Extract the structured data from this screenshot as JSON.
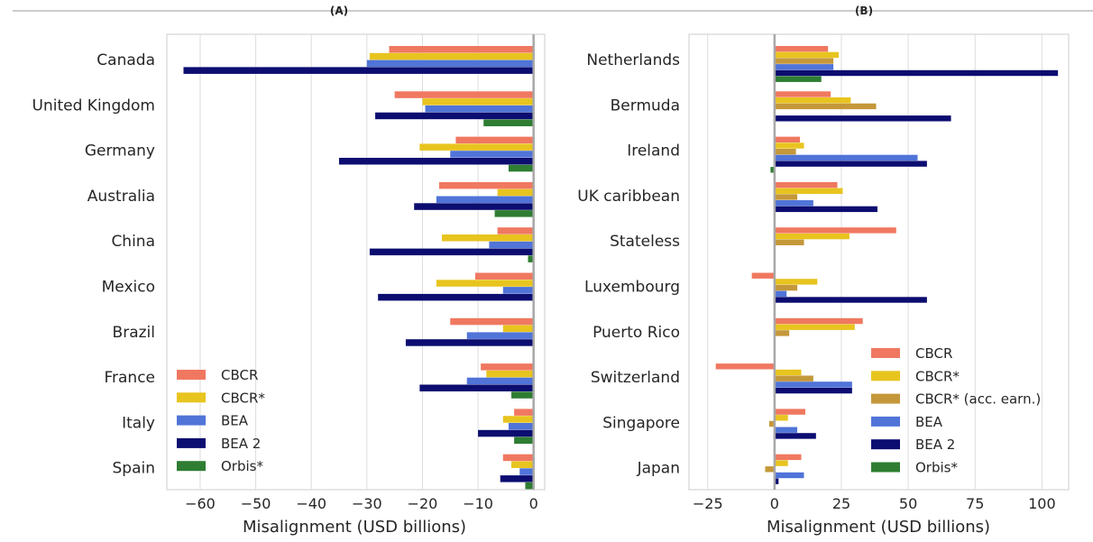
{
  "chart_data": [
    {
      "type": "bar",
      "orientation": "horizontal",
      "title": "(A)",
      "xlabel": "Misalignment (USD billions)",
      "xlim": [
        -66,
        2
      ],
      "xticks": [
        -60,
        -50,
        -40,
        -30,
        -20,
        -10,
        0
      ],
      "xtick_labels": [
        "−60",
        "−50",
        "−40",
        "−30",
        "−20",
        "−10",
        "0"
      ],
      "grid": true,
      "legend_position": "bottom-left",
      "categories": [
        "Canada",
        "United Kingdom",
        "Germany",
        "Australia",
        "China",
        "Mexico",
        "Brazil",
        "France",
        "Italy",
        "Spain"
      ],
      "series": [
        {
          "name": "CBCR",
          "color": "#f07860",
          "values": [
            -26,
            -25,
            -14,
            -17,
            -6.5,
            -10.5,
            -15,
            -9.5,
            -3.5,
            -5.5
          ]
        },
        {
          "name": "CBCR*",
          "color": "#e8c41f",
          "values": [
            -29.5,
            -20,
            -20.5,
            -6.5,
            -16.5,
            -17.5,
            -5.5,
            -8.5,
            -5.5,
            -4
          ]
        },
        {
          "name": "BEA",
          "color": "#5074d8",
          "values": [
            -30,
            -19.5,
            -15,
            -17.5,
            -8,
            -5.5,
            -12,
            -12,
            -4.5,
            -2.5
          ]
        },
        {
          "name": "BEA 2",
          "color": "#0c0d70",
          "values": [
            -63,
            -28.5,
            -35,
            -21.5,
            -29.5,
            -28,
            -23,
            -20.5,
            -10,
            -6
          ]
        },
        {
          "name": "Orbis*",
          "color": "#2e7d32",
          "values": [
            0,
            -9,
            -4.5,
            -7,
            -1,
            0,
            0,
            -4,
            -3.5,
            -1.5
          ]
        }
      ]
    },
    {
      "type": "bar",
      "orientation": "horizontal",
      "title": "(B)",
      "xlabel": "Misalignment (USD billions)",
      "xlim": [
        -32,
        110
      ],
      "xticks": [
        -25,
        0,
        25,
        50,
        75,
        100
      ],
      "xtick_labels": [
        "−25",
        "0",
        "25",
        "50",
        "75",
        "100"
      ],
      "grid": true,
      "legend_position": "bottom-right",
      "categories": [
        "Netherlands",
        "Bermuda",
        "Ireland",
        "UK caribbean",
        "Stateless",
        "Luxembourg",
        "Puerto Rico",
        "Switzerland",
        "Singapore",
        "Japan"
      ],
      "series": [
        {
          "name": "CBCR",
          "color": "#f07860",
          "values": [
            20,
            21,
            9.5,
            23.5,
            45.5,
            -8.5,
            33,
            -22,
            11.5,
            10
          ]
        },
        {
          "name": "CBCR*",
          "color": "#e8c41f",
          "values": [
            24,
            28.5,
            11,
            25.5,
            28,
            16,
            30,
            10,
            5,
            5
          ]
        },
        {
          "name": "CBCR* (acc. earn.)",
          "color": "#c4983a",
          "values": [
            22,
            38,
            8,
            8.5,
            11,
            8.5,
            5.5,
            14.5,
            -2,
            -3.5
          ]
        },
        {
          "name": "BEA",
          "color": "#5074d8",
          "values": [
            22,
            0,
            53.5,
            14.5,
            0,
            4.5,
            0,
            29,
            8.5,
            11
          ]
        },
        {
          "name": "BEA 2",
          "color": "#0c0d70",
          "values": [
            106,
            66,
            57,
            38.5,
            0,
            57,
            0,
            29,
            15.5,
            1.5
          ]
        },
        {
          "name": "Orbis*",
          "color": "#2e7d32",
          "values": [
            17.5,
            0,
            -1.5,
            0,
            0,
            0,
            0,
            0,
            0,
            0
          ]
        }
      ]
    }
  ]
}
